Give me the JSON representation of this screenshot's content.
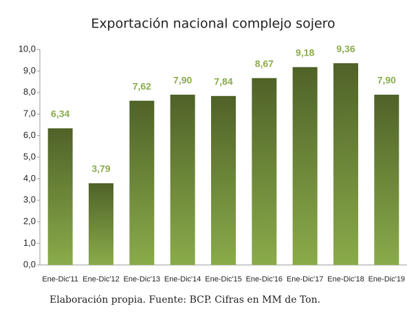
{
  "chart_data": {
    "type": "bar",
    "title": "Exportación nacional complejo sojero",
    "categories": [
      "Ene-Dic'11",
      "Ene-Dic'12",
      "Ene-Dic'13",
      "Ene-Dic'14",
      "Ene-Dic'15",
      "Ene-Dic'16",
      "Ene-Dic'17",
      "Ene-Dic'18",
      "Ene-Dic'19"
    ],
    "values": [
      6.34,
      3.79,
      7.62,
      7.9,
      7.84,
      8.67,
      9.18,
      9.36,
      7.9
    ],
    "value_labels": [
      "6,34",
      "3,79",
      "7,62",
      "7,90",
      "7,84",
      "8,67",
      "9,18",
      "9,36",
      "7,90"
    ],
    "color": "#8aab4a",
    "ylim": [
      0,
      10
    ],
    "yticks": [
      {
        "value": 0,
        "label": "0,0"
      },
      {
        "value": 1,
        "label": "1,0"
      },
      {
        "value": 2,
        "label": "2,0"
      },
      {
        "value": 3,
        "label": "3,0"
      },
      {
        "value": 4,
        "label": "4,0"
      },
      {
        "value": 5,
        "label": "5,0"
      },
      {
        "value": 6,
        "label": "6,0"
      },
      {
        "value": 7,
        "label": "7,0"
      },
      {
        "value": 8,
        "label": "8,0"
      },
      {
        "value": 9,
        "label": "9,0"
      },
      {
        "value": 10,
        "label": "10,0"
      }
    ],
    "grid": false,
    "caption": "Elaboración propia. Fuente: BCP. Cifras en MM de Ton."
  }
}
